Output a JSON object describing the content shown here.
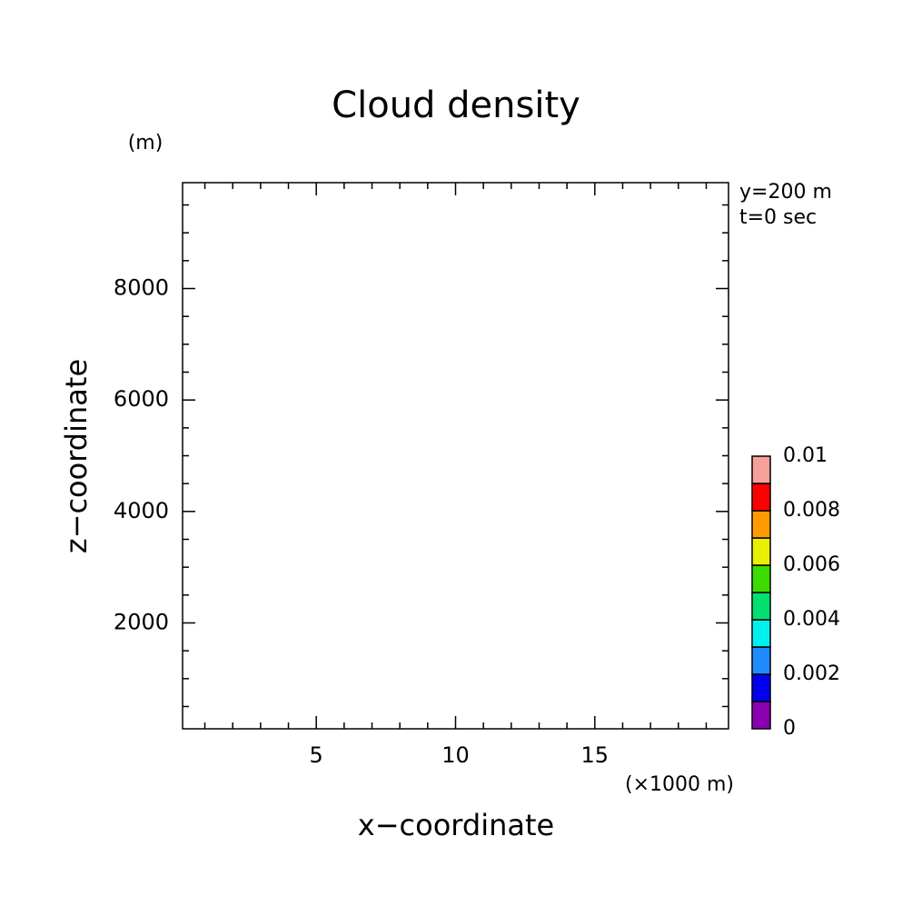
{
  "chart_data": {
    "type": "contour",
    "title": "Cloud density",
    "x_label": "x−coordinate",
    "y_label": "z−coordinate",
    "x_unit": "(×1000 m)",
    "y_unit": "(m)",
    "annotations": [
      "y=200 m",
      "t=0 sec"
    ],
    "xlim": [
      0.2,
      19.8
    ],
    "xticks": [
      5,
      10,
      15
    ],
    "xminorticks": [
      1,
      2,
      3,
      4,
      6,
      7,
      8,
      9,
      11,
      12,
      13,
      14,
      16,
      17,
      18,
      19
    ],
    "ylim": [
      100,
      9900
    ],
    "yticks": [
      2000,
      4000,
      6000,
      8000
    ],
    "yminorticks": [
      500,
      1000,
      1500,
      2500,
      3000,
      3500,
      4500,
      5000,
      5500,
      6500,
      7000,
      7500,
      8500,
      9000,
      9500
    ],
    "colorbar": {
      "levels": [
        0,
        0.001,
        0.002,
        0.003,
        0.004,
        0.005,
        0.006,
        0.007,
        0.008,
        0.009,
        0.01
      ],
      "ticks": [
        0,
        0.002,
        0.004,
        0.006,
        0.008,
        0.01
      ],
      "colors": [
        "#8a00b0",
        "#0000f0",
        "#1e8cff",
        "#00f0f0",
        "#00e070",
        "#3cdc00",
        "#e6f000",
        "#ff9b00",
        "#ff0000",
        "#f5a09b"
      ]
    }
  }
}
